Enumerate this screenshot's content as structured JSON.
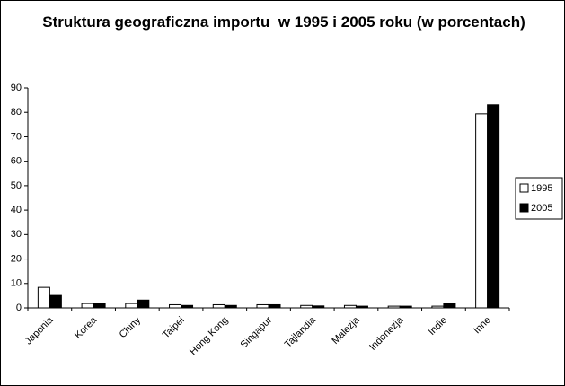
{
  "chart_data": {
    "type": "bar",
    "title": "Struktura geograficzna importu  w 1995 i 2005 roku (w porcentach)",
    "categories": [
      "Japonia",
      "Korea",
      "Chiny",
      "Taipei",
      "Hong Kong",
      "Singapur",
      "Tajlandia",
      "Malezja",
      "Indonezja",
      "Indie",
      "Inne"
    ],
    "series": [
      {
        "name": "1995",
        "color": "#ffffff",
        "values": [
          8.4,
          1.8,
          1.8,
          1.3,
          1.3,
          1.3,
          1.0,
          1.0,
          0.7,
          0.7,
          79.4
        ]
      },
      {
        "name": "2005",
        "color": "#000000",
        "values": [
          5.1,
          1.8,
          3.2,
          1.0,
          1.0,
          1.3,
          0.8,
          0.7,
          0.7,
          1.8,
          83.1
        ]
      }
    ],
    "ylim": [
      0,
      90
    ],
    "yticks": [
      0,
      10,
      20,
      30,
      40,
      50,
      60,
      70,
      80,
      90
    ],
    "grid": false,
    "legend": "right"
  }
}
